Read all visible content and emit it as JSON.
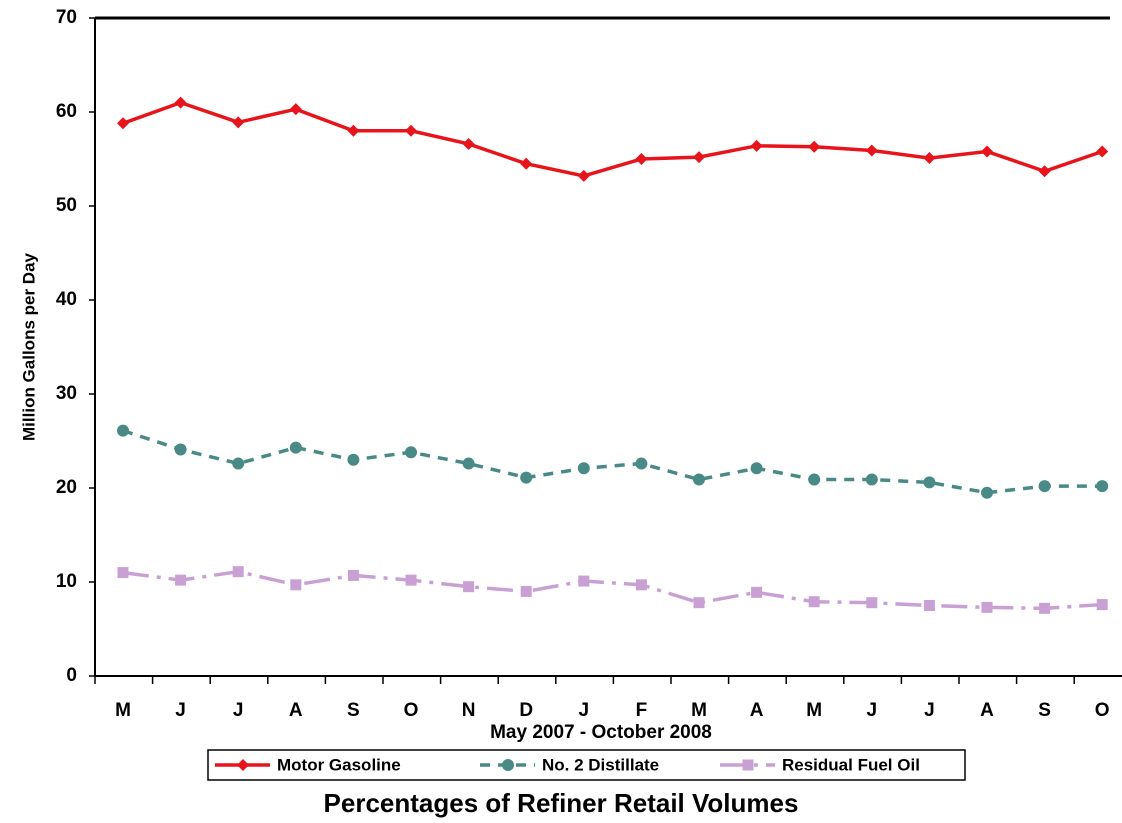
{
  "chart_data": {
    "type": "line",
    "title": "Percentages of Refiner Retail Volumes",
    "x_label": "May 2007 - October 2008",
    "y_label": "Million Gallons per Day",
    "categories": [
      "M",
      "J",
      "J",
      "A",
      "S",
      "O",
      "N",
      "D",
      "J",
      "F",
      "M",
      "A",
      "M",
      "J",
      "J",
      "A",
      "S",
      "O"
    ],
    "series": [
      {
        "name": "Motor Gasoline",
        "color": "#e8141b",
        "values": [
          58.8,
          61.0,
          58.9,
          60.3,
          58.0,
          58.0,
          56.6,
          54.5,
          53.2,
          55.0,
          55.2,
          56.4,
          56.3,
          55.9,
          55.1,
          55.8,
          53.7,
          55.8
        ]
      },
      {
        "name": "No. 2 Distillate",
        "color": "#4a8a86",
        "values": [
          26.1,
          24.1,
          22.6,
          24.3,
          23.0,
          23.8,
          22.6,
          21.1,
          22.1,
          22.6,
          20.9,
          22.1,
          20.9,
          20.9,
          20.6,
          19.5,
          20.2,
          20.2
        ]
      },
      {
        "name": "Residual Fuel Oil",
        "color": "#c9a0d4",
        "values": [
          11.0,
          10.2,
          11.1,
          9.7,
          10.7,
          10.2,
          9.5,
          9.0,
          10.1,
          9.7,
          7.8,
          8.9,
          7.9,
          7.8,
          7.5,
          7.3,
          7.2,
          7.6
        ]
      }
    ],
    "ylim": [
      0,
      70
    ],
    "yticks": [
      0,
      10,
      20,
      30,
      40,
      50,
      60,
      70
    ],
    "grid": false
  }
}
